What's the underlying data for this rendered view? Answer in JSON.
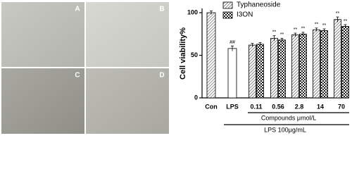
{
  "panels": [
    "A",
    "B",
    "C",
    "D"
  ],
  "chart_data": {
    "type": "bar",
    "ylabel": "Cell viability%",
    "xlabel": "Compounds μmol/L",
    "footer": "LPS 100μg/mL",
    "categories": [
      "Con",
      "LPS",
      "0.11",
      "0.56",
      "2.8",
      "14",
      "70"
    ],
    "ylim": [
      0,
      105
    ],
    "yticks": [
      0,
      50,
      100
    ],
    "controls": {
      "color": "#666666",
      "values": [
        100,
        58
      ],
      "errors": [
        2,
        3
      ],
      "annotations": [
        null,
        "##"
      ]
    },
    "series": [
      {
        "name": "Typhaneoside",
        "color": "#555555",
        "values": [
          null,
          null,
          62,
          70,
          74,
          80,
          92
        ],
        "errors": [
          null,
          null,
          2,
          3,
          2,
          2,
          3
        ],
        "annotations": [
          null,
          null,
          null,
          "**",
          "**",
          "**",
          "**"
        ]
      },
      {
        "name": "I3ON",
        "color": "#222222",
        "values": [
          null,
          null,
          63,
          68,
          75,
          79,
          84
        ],
        "errors": [
          null,
          null,
          2,
          2,
          2,
          2,
          2
        ],
        "annotations": [
          null,
          null,
          null,
          "**",
          "**",
          "**",
          "**"
        ]
      }
    ]
  }
}
